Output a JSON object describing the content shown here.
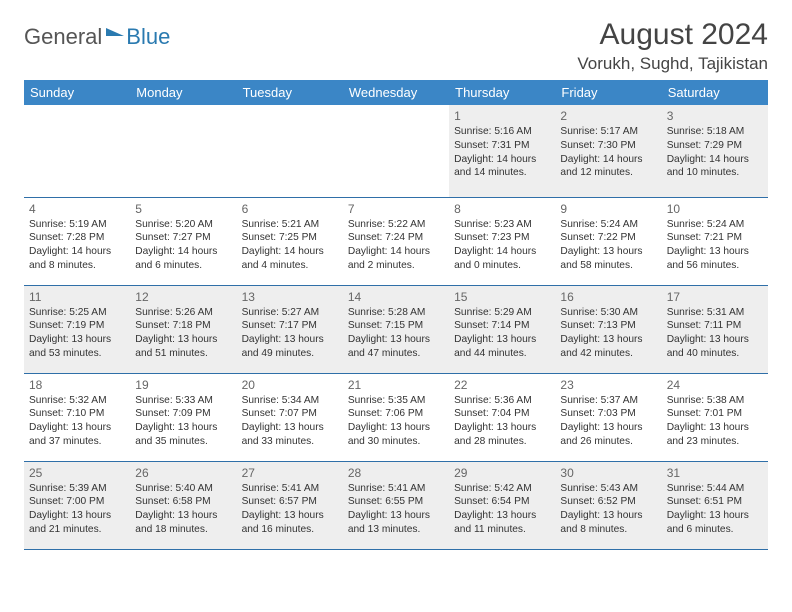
{
  "logo": {
    "general": "General",
    "blue": "Blue"
  },
  "title": "August 2024",
  "location": "Vorukh, Sughd, Tajikistan",
  "colors": {
    "header_bg": "#3b86c6",
    "header_text": "#ffffff",
    "rule": "#2f6fa8",
    "shaded_bg": "#eeeeee",
    "plain_bg": "#ffffff",
    "text": "#333333",
    "logo_blue": "#2a7ab0"
  },
  "typography": {
    "title_fontsize_pt": 22,
    "location_fontsize_pt": 13,
    "dayheader_fontsize_pt": 10,
    "cell_fontsize_pt": 8,
    "daynum_fontsize_pt": 9
  },
  "weekdays": [
    "Sunday",
    "Monday",
    "Tuesday",
    "Wednesday",
    "Thursday",
    "Friday",
    "Saturday"
  ],
  "weeks": [
    [
      null,
      null,
      null,
      null,
      {
        "n": "1",
        "sr": "Sunrise: 5:16 AM",
        "ss": "Sunset: 7:31 PM",
        "dl": "Daylight: 14 hours and 14 minutes."
      },
      {
        "n": "2",
        "sr": "Sunrise: 5:17 AM",
        "ss": "Sunset: 7:30 PM",
        "dl": "Daylight: 14 hours and 12 minutes."
      },
      {
        "n": "3",
        "sr": "Sunrise: 5:18 AM",
        "ss": "Sunset: 7:29 PM",
        "dl": "Daylight: 14 hours and 10 minutes."
      }
    ],
    [
      {
        "n": "4",
        "sr": "Sunrise: 5:19 AM",
        "ss": "Sunset: 7:28 PM",
        "dl": "Daylight: 14 hours and 8 minutes."
      },
      {
        "n": "5",
        "sr": "Sunrise: 5:20 AM",
        "ss": "Sunset: 7:27 PM",
        "dl": "Daylight: 14 hours and 6 minutes."
      },
      {
        "n": "6",
        "sr": "Sunrise: 5:21 AM",
        "ss": "Sunset: 7:25 PM",
        "dl": "Daylight: 14 hours and 4 minutes."
      },
      {
        "n": "7",
        "sr": "Sunrise: 5:22 AM",
        "ss": "Sunset: 7:24 PM",
        "dl": "Daylight: 14 hours and 2 minutes."
      },
      {
        "n": "8",
        "sr": "Sunrise: 5:23 AM",
        "ss": "Sunset: 7:23 PM",
        "dl": "Daylight: 14 hours and 0 minutes."
      },
      {
        "n": "9",
        "sr": "Sunrise: 5:24 AM",
        "ss": "Sunset: 7:22 PM",
        "dl": "Daylight: 13 hours and 58 minutes."
      },
      {
        "n": "10",
        "sr": "Sunrise: 5:24 AM",
        "ss": "Sunset: 7:21 PM",
        "dl": "Daylight: 13 hours and 56 minutes."
      }
    ],
    [
      {
        "n": "11",
        "sr": "Sunrise: 5:25 AM",
        "ss": "Sunset: 7:19 PM",
        "dl": "Daylight: 13 hours and 53 minutes."
      },
      {
        "n": "12",
        "sr": "Sunrise: 5:26 AM",
        "ss": "Sunset: 7:18 PM",
        "dl": "Daylight: 13 hours and 51 minutes."
      },
      {
        "n": "13",
        "sr": "Sunrise: 5:27 AM",
        "ss": "Sunset: 7:17 PM",
        "dl": "Daylight: 13 hours and 49 minutes."
      },
      {
        "n": "14",
        "sr": "Sunrise: 5:28 AM",
        "ss": "Sunset: 7:15 PM",
        "dl": "Daylight: 13 hours and 47 minutes."
      },
      {
        "n": "15",
        "sr": "Sunrise: 5:29 AM",
        "ss": "Sunset: 7:14 PM",
        "dl": "Daylight: 13 hours and 44 minutes."
      },
      {
        "n": "16",
        "sr": "Sunrise: 5:30 AM",
        "ss": "Sunset: 7:13 PM",
        "dl": "Daylight: 13 hours and 42 minutes."
      },
      {
        "n": "17",
        "sr": "Sunrise: 5:31 AM",
        "ss": "Sunset: 7:11 PM",
        "dl": "Daylight: 13 hours and 40 minutes."
      }
    ],
    [
      {
        "n": "18",
        "sr": "Sunrise: 5:32 AM",
        "ss": "Sunset: 7:10 PM",
        "dl": "Daylight: 13 hours and 37 minutes."
      },
      {
        "n": "19",
        "sr": "Sunrise: 5:33 AM",
        "ss": "Sunset: 7:09 PM",
        "dl": "Daylight: 13 hours and 35 minutes."
      },
      {
        "n": "20",
        "sr": "Sunrise: 5:34 AM",
        "ss": "Sunset: 7:07 PM",
        "dl": "Daylight: 13 hours and 33 minutes."
      },
      {
        "n": "21",
        "sr": "Sunrise: 5:35 AM",
        "ss": "Sunset: 7:06 PM",
        "dl": "Daylight: 13 hours and 30 minutes."
      },
      {
        "n": "22",
        "sr": "Sunrise: 5:36 AM",
        "ss": "Sunset: 7:04 PM",
        "dl": "Daylight: 13 hours and 28 minutes."
      },
      {
        "n": "23",
        "sr": "Sunrise: 5:37 AM",
        "ss": "Sunset: 7:03 PM",
        "dl": "Daylight: 13 hours and 26 minutes."
      },
      {
        "n": "24",
        "sr": "Sunrise: 5:38 AM",
        "ss": "Sunset: 7:01 PM",
        "dl": "Daylight: 13 hours and 23 minutes."
      }
    ],
    [
      {
        "n": "25",
        "sr": "Sunrise: 5:39 AM",
        "ss": "Sunset: 7:00 PM",
        "dl": "Daylight: 13 hours and 21 minutes."
      },
      {
        "n": "26",
        "sr": "Sunrise: 5:40 AM",
        "ss": "Sunset: 6:58 PM",
        "dl": "Daylight: 13 hours and 18 minutes."
      },
      {
        "n": "27",
        "sr": "Sunrise: 5:41 AM",
        "ss": "Sunset: 6:57 PM",
        "dl": "Daylight: 13 hours and 16 minutes."
      },
      {
        "n": "28",
        "sr": "Sunrise: 5:41 AM",
        "ss": "Sunset: 6:55 PM",
        "dl": "Daylight: 13 hours and 13 minutes."
      },
      {
        "n": "29",
        "sr": "Sunrise: 5:42 AM",
        "ss": "Sunset: 6:54 PM",
        "dl": "Daylight: 13 hours and 11 minutes."
      },
      {
        "n": "30",
        "sr": "Sunrise: 5:43 AM",
        "ss": "Sunset: 6:52 PM",
        "dl": "Daylight: 13 hours and 8 minutes."
      },
      {
        "n": "31",
        "sr": "Sunrise: 5:44 AM",
        "ss": "Sunset: 6:51 PM",
        "dl": "Daylight: 13 hours and 6 minutes."
      }
    ]
  ],
  "row_shade": [
    "shaded",
    "plain",
    "shaded",
    "plain",
    "shaded"
  ]
}
